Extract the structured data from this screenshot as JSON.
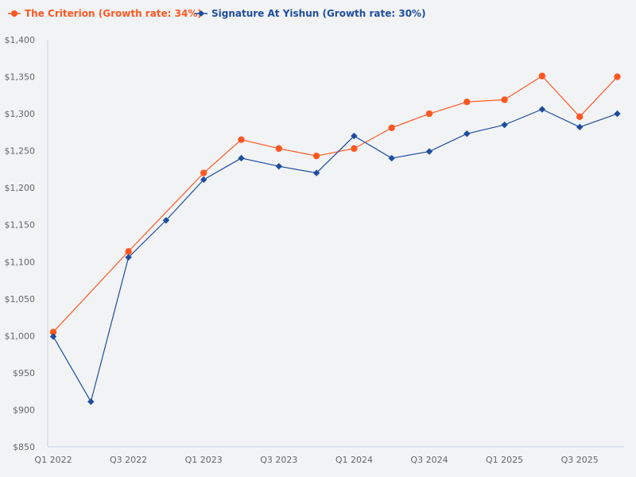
{
  "chart_data": {
    "type": "line",
    "title": "",
    "xlabel": "",
    "ylabel": "",
    "categories": [
      "Q1 2022",
      "Q2 2022",
      "Q3 2022",
      "Q4 2022",
      "Q1 2023",
      "Q2 2023",
      "Q3 2023",
      "Q4 2023",
      "Q1 2024",
      "Q2 2024",
      "Q3 2024",
      "Q4 2024",
      "Q1 2025",
      "Q2 2025",
      "Q3 2025",
      "Q4 2025"
    ],
    "x_tick_labels": [
      "Q1 2022",
      "Q3 2022",
      "Q1 2023",
      "Q3 2023",
      "Q1 2024",
      "Q3 2024",
      "Q1 2025",
      "Q3 2025"
    ],
    "y_tick_labels": [
      "$850",
      "$900",
      "$950",
      "$1,000",
      "$1,050",
      "$1,100",
      "$1,150",
      "$1,200",
      "$1,250",
      "$1,300",
      "$1,350",
      "$1,400"
    ],
    "ylim": [
      850,
      1400
    ],
    "grid": false,
    "legend_position": "top-left",
    "series": [
      {
        "name": "The Criterion (Growth rate: 34%)",
        "color": "#ff5722",
        "marker": "circle",
        "values": [
          1005,
          null,
          1114,
          null,
          1220,
          1265,
          1253,
          1243,
          1253,
          1281,
          1300,
          1316,
          1319,
          1351,
          1296,
          1350
        ]
      },
      {
        "name": "Signature At Yishun (Growth rate: 30%)",
        "color": "#1e4d9e",
        "marker": "diamond",
        "values": [
          999,
          911,
          1106,
          1156,
          1211,
          1240,
          1229,
          1220,
          1270,
          1240,
          1249,
          1273,
          1285,
          1306,
          1282,
          1300
        ]
      }
    ]
  }
}
